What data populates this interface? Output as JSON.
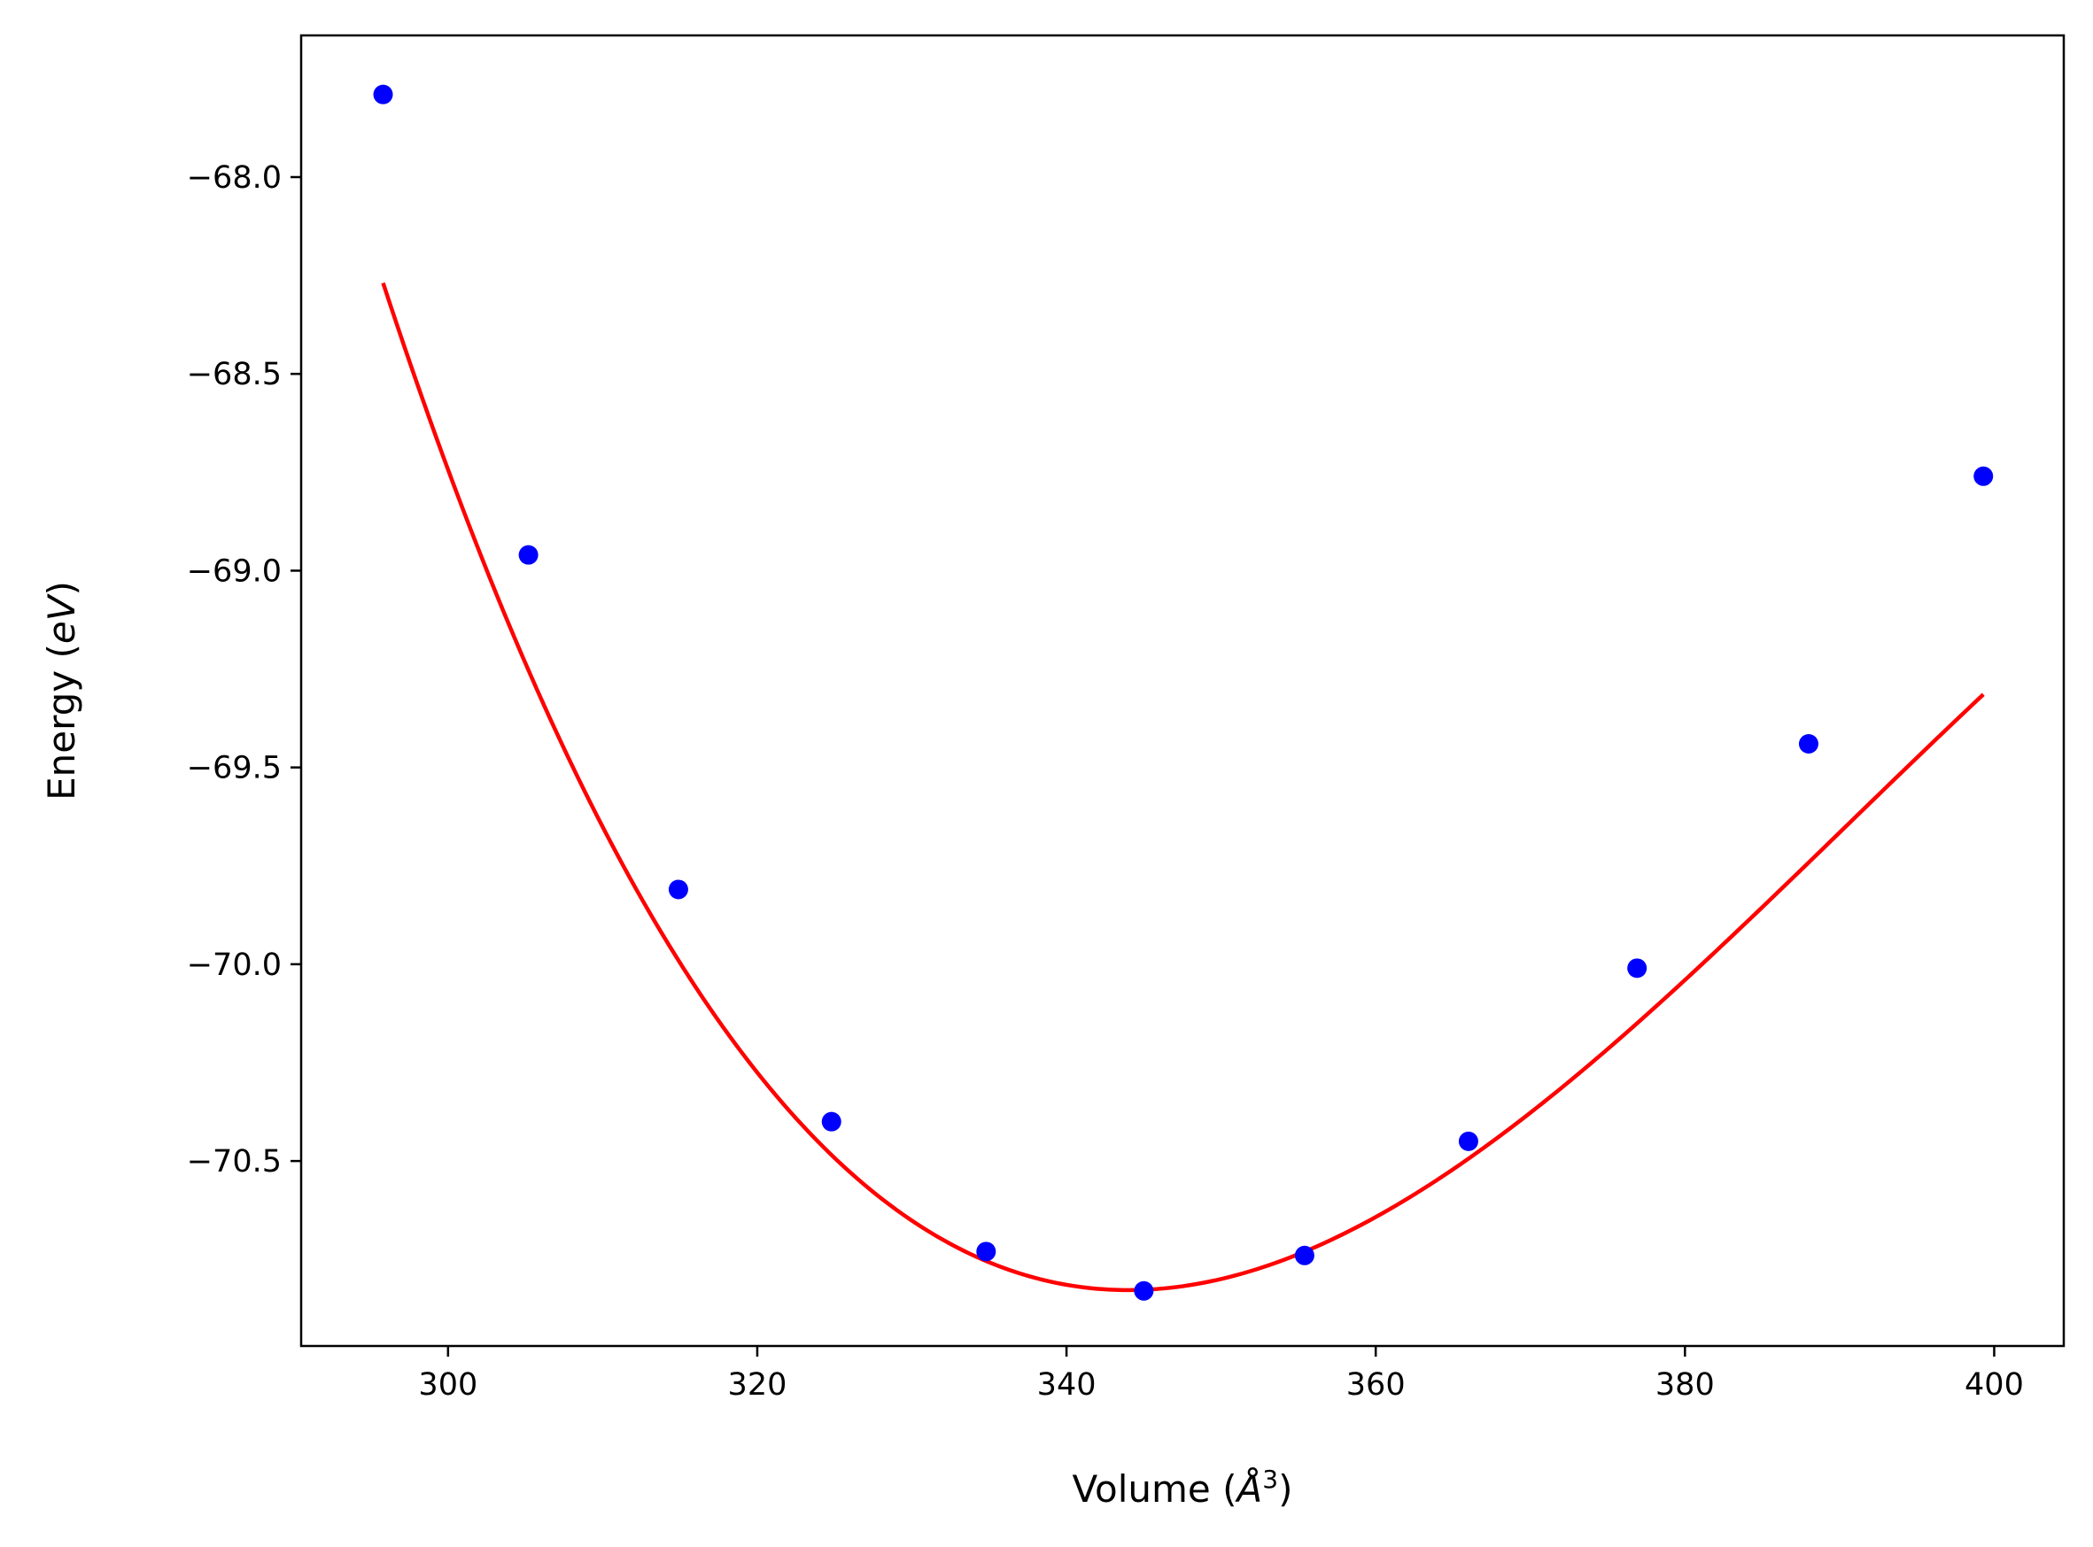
{
  "chart_data": {
    "type": "line",
    "title": "",
    "xlabel": "Volume",
    "xlabel_unit_prefix": "(",
    "xlabel_unit": "Å",
    "xlabel_unit_exp": "3",
    "xlabel_unit_suffix": ")",
    "ylabel": "Energy",
    "ylabel_unit_prefix": "(",
    "ylabel_unit": "eV",
    "ylabel_unit_suffix": ")",
    "xlim": [
      290.5,
      404.5
    ],
    "ylim": [
      -70.97,
      -67.64
    ],
    "xticks": [
      300,
      320,
      340,
      360,
      380,
      400
    ],
    "xtick_labels": [
      "300",
      "320",
      "340",
      "360",
      "380",
      "400"
    ],
    "yticks": [
      -68.0,
      -68.5,
      -69.0,
      -69.5,
      -70.0,
      -70.5
    ],
    "ytick_labels": [
      "−68.0",
      "−68.5",
      "−69.0",
      "−69.5",
      "−70.0",
      "−70.5"
    ],
    "grid": false,
    "series": [
      {
        "kind": "scatter",
        "color": "#0000ff",
        "points": [
          {
            "x": 295.8,
            "y": -67.79
          },
          {
            "x": 305.2,
            "y": -68.96
          },
          {
            "x": 314.9,
            "y": -69.81
          },
          {
            "x": 324.8,
            "y": -70.4
          },
          {
            "x": 334.8,
            "y": -70.73
          },
          {
            "x": 345.0,
            "y": -70.83
          },
          {
            "x": 355.4,
            "y": -70.74
          },
          {
            "x": 366.0,
            "y": -70.45
          },
          {
            "x": 376.9,
            "y": -70.01
          },
          {
            "x": 388.0,
            "y": -69.44
          },
          {
            "x": 399.3,
            "y": -68.76
          }
        ]
      },
      {
        "kind": "line",
        "color": "#ff0000",
        "fit": {
          "form": "cubic",
          "e0": -70.828,
          "v0": 344.0,
          "b2": 0.000819,
          "b3": -5.86e-06,
          "domain": [
            295.8,
            399.3
          ]
        }
      }
    ]
  }
}
